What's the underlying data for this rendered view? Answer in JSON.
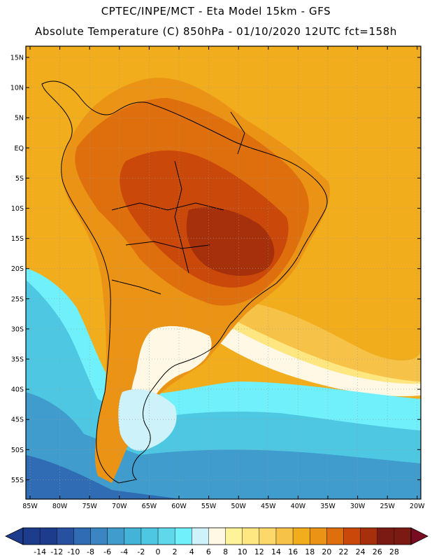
{
  "title_line1": "CPTEC/INPE/MCT  -   Eta Model 15km  -  GFS",
  "title_line2": "Absolute Temperature (C) 850hPa - 01/10/2020 12UTC fct=158h",
  "lat_labels": [
    "15N",
    "10N",
    "5N",
    "EQ",
    "5S",
    "10S",
    "15S",
    "20S",
    "25S",
    "30S",
    "35S",
    "40S",
    "45S",
    "50S",
    "55S"
  ],
  "lon_labels": [
    "85W",
    "80W",
    "75W",
    "70W",
    "65W",
    "60W",
    "55W",
    "50W",
    "45W",
    "40W",
    "35W",
    "30W",
    "25W",
    "20W"
  ],
  "colorbar": {
    "labels": [
      "-14",
      "-12",
      "-10",
      "-8",
      "-6",
      "-4",
      "-2",
      "0",
      "2",
      "4",
      "6",
      "8",
      "10",
      "12",
      "14",
      "16",
      "18",
      "20",
      "22",
      "24",
      "26",
      "28"
    ],
    "colors": [
      "#1e3c8c",
      "#1e3c8c",
      "#2850a0",
      "#2f6cb4",
      "#3b86c2",
      "#3f9ccc",
      "#43b3d8",
      "#4ec7e2",
      "#5ed8ea",
      "#6ff0fb",
      "#cdf2fa",
      "#fff8e4",
      "#fff39a",
      "#fee680",
      "#fcd86a",
      "#f6c348",
      "#f1ad1c",
      "#eb9315",
      "#df6f0d",
      "#c9480a",
      "#a5300b",
      "#7b1a12",
      "#7b1a12"
    ],
    "low_arrow_color": "#1e3c8c",
    "high_arrow_color": "#7a0c22"
  },
  "field_colors": {
    "ocean_warm": "#f1ad1c",
    "ocean_warm2": "#f6c348",
    "land_hot": "#c9480a",
    "land_hotter": "#a5300b",
    "land_warm": "#df6f0d",
    "land_mild": "#eb9315",
    "pale": "#fff8e4",
    "cyan": "#4ec7e2",
    "cyan_light": "#6ff0fb",
    "blue": "#3f9ccc",
    "blue_dark": "#2f6cb4",
    "border": "#000000"
  }
}
